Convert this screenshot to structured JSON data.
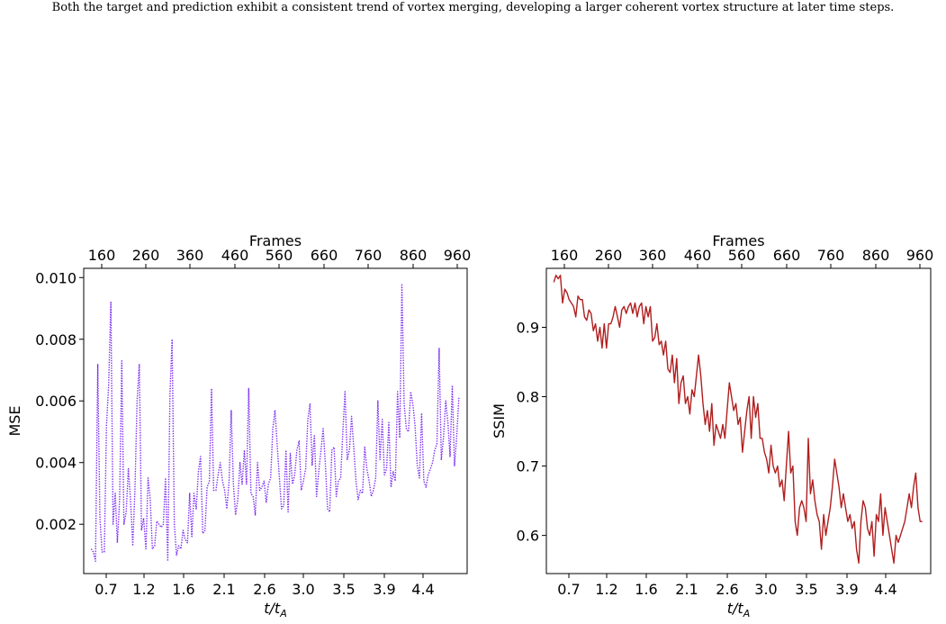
{
  "caption": "Both the target and prediction exhibit a consistent trend of vortex merging, developing a larger coherent vortex structure at later time steps.",
  "colors": {
    "mse": "#7b2cf0",
    "ssim": "#b01e1e"
  },
  "chart_data": [
    {
      "type": "line",
      "title": "",
      "xlabel": "t/t_A",
      "xlabel_main": "t/t",
      "xlabel_sub": "A",
      "ylabel": "MSE",
      "top_xlabel": "Frames",
      "top_ticks": [
        "160",
        "260",
        "360",
        "460",
        "560",
        "660",
        "760",
        "860",
        "960"
      ],
      "bottom_ticks": [
        "0.7",
        "1.2",
        "1.6",
        "2.1",
        "2.6",
        "3.0",
        "3.5",
        "3.9",
        "4.4"
      ],
      "y_ticks": [
        "0.002",
        "0.004",
        "0.006",
        "0.008",
        "0.010"
      ],
      "y_tick_values": [
        0.002,
        0.004,
        0.006,
        0.008,
        0.01
      ],
      "xlim": [
        143,
        1019
      ],
      "ylim": [
        0.0004,
        0.0103
      ],
      "line_style": "dotted",
      "series": [
        {
          "color": "#7b2cf0",
          "x": [
            160,
            165,
            170,
            175,
            180,
            185,
            190,
            195,
            200,
            205,
            210,
            215,
            220,
            225,
            230,
            235,
            240,
            245,
            250,
            255,
            260,
            265,
            270,
            275,
            280,
            285,
            290,
            295,
            300,
            305,
            310,
            315,
            320,
            325,
            330,
            335,
            340,
            345,
            350,
            355,
            360,
            365,
            370,
            375,
            380,
            385,
            390,
            395,
            400,
            405,
            410,
            415,
            420,
            425,
            430,
            435,
            440,
            445,
            450,
            455,
            460,
            465,
            470,
            475,
            480,
            485,
            490,
            495,
            500,
            505,
            510,
            515,
            520,
            525,
            530,
            535,
            540,
            545,
            550,
            555,
            560,
            565,
            570,
            575,
            580,
            585,
            590,
            595,
            600,
            605,
            610,
            615,
            620,
            625,
            630,
            635,
            640,
            645,
            650,
            655,
            660,
            665,
            670,
            675,
            680,
            685,
            690,
            695,
            700,
            705,
            710,
            715,
            720,
            725,
            730,
            735,
            740,
            745,
            750,
            755,
            760,
            765,
            770,
            775,
            780,
            785,
            790,
            795,
            800,
            805,
            810,
            815,
            820,
            825,
            830,
            835,
            840,
            845,
            850,
            855,
            860,
            865,
            870,
            875,
            880,
            885,
            890,
            895,
            900,
            905,
            910,
            915,
            920,
            925,
            930,
            935,
            940,
            945,
            950,
            955,
            960,
            965,
            970,
            975,
            980,
            985,
            990,
            995,
            1000
          ],
          "y": [
            0.0012,
            0.0011,
            0.0008,
            0.0072,
            0.0022,
            0.0011,
            0.0011,
            0.0052,
            0.0065,
            0.0092,
            0.002,
            0.003,
            0.0014,
            0.0028,
            0.0073,
            0.002,
            0.0024,
            0.0038,
            0.0028,
            0.0013,
            0.0031,
            0.006,
            0.0072,
            0.0018,
            0.0022,
            0.0012,
            0.0035,
            0.0028,
            0.0012,
            0.0013,
            0.0021,
            0.002,
            0.0019,
            0.002,
            0.0035,
            0.0008,
            0.0062,
            0.008,
            0.002,
            0.001,
            0.0013,
            0.0012,
            0.0018,
            0.0015,
            0.0014,
            0.003,
            0.0016,
            0.003,
            0.0025,
            0.0037,
            0.0042,
            0.0017,
            0.0018,
            0.0032,
            0.0034,
            0.0064,
            0.0031,
            0.0031,
            0.0036,
            0.004,
            0.0034,
            0.0031,
            0.0025,
            0.0034,
            0.0057,
            0.0033,
            0.0023,
            0.0028,
            0.004,
            0.0033,
            0.0044,
            0.0033,
            0.0064,
            0.003,
            0.0029,
            0.0023,
            0.004,
            0.0031,
            0.0032,
            0.0034,
            0.0027,
            0.0033,
            0.0035,
            0.0051,
            0.0057,
            0.0046,
            0.0035,
            0.0025,
            0.0026,
            0.0044,
            0.0024,
            0.0043,
            0.0033,
            0.0036,
            0.0044,
            0.0047,
            0.0031,
            0.0034,
            0.0038,
            0.0054,
            0.0059,
            0.0039,
            0.0049,
            0.0029,
            0.0037,
            0.0044,
            0.0051,
            0.004,
            0.0025,
            0.0024,
            0.0044,
            0.0045,
            0.0029,
            0.0034,
            0.0035,
            0.005,
            0.0063,
            0.0041,
            0.0044,
            0.0055,
            0.0045,
            0.0034,
            0.0028,
            0.0031,
            0.003,
            0.0045,
            0.0038,
            0.0034,
            0.0029,
            0.0031,
            0.0035,
            0.006,
            0.0041,
            0.0054,
            0.0036,
            0.0038,
            0.0053,
            0.0032,
            0.0037,
            0.0034,
            0.0063,
            0.0048,
            0.0098,
            0.0059,
            0.0051,
            0.005,
            0.0063,
            0.0059,
            0.0052,
            0.0039,
            0.0035,
            0.0056,
            0.0034,
            0.0032,
            0.0036,
            0.0038,
            0.004,
            0.0044,
            0.0046,
            0.0077,
            0.0041,
            0.0048,
            0.006,
            0.0053,
            0.0042,
            0.0065,
            0.0039,
            0.0048,
            0.0061
          ]
        }
      ]
    },
    {
      "type": "line",
      "title": "",
      "xlabel": "t/t_A",
      "xlabel_main": "t/t",
      "xlabel_sub": "A",
      "ylabel": "SSIM",
      "top_xlabel": "Frames",
      "top_ticks": [
        "160",
        "260",
        "360",
        "460",
        "560",
        "660",
        "760",
        "860",
        "960"
      ],
      "bottom_ticks": [
        "0.7",
        "1.2",
        "1.6",
        "2.1",
        "2.6",
        "3.0",
        "3.5",
        "3.9",
        "4.4"
      ],
      "y_ticks": [
        "0.6",
        "0.7",
        "0.8",
        "0.9"
      ],
      "y_tick_values": [
        0.6,
        0.7,
        0.8,
        0.9
      ],
      "xlim": [
        143,
        1019
      ],
      "ylim": [
        0.545,
        0.985
      ],
      "line_style": "solid",
      "series": [
        {
          "color": "#b01e1e",
          "x": [
            160,
            165,
            170,
            175,
            180,
            185,
            190,
            195,
            200,
            205,
            210,
            215,
            220,
            225,
            230,
            235,
            240,
            245,
            250,
            255,
            260,
            265,
            270,
            275,
            280,
            285,
            290,
            295,
            300,
            305,
            310,
            315,
            320,
            325,
            330,
            335,
            340,
            345,
            350,
            355,
            360,
            365,
            370,
            375,
            380,
            385,
            390,
            395,
            400,
            405,
            410,
            415,
            420,
            425,
            430,
            435,
            440,
            445,
            450,
            455,
            460,
            465,
            470,
            475,
            480,
            485,
            490,
            495,
            500,
            505,
            510,
            515,
            520,
            525,
            530,
            535,
            540,
            545,
            550,
            555,
            560,
            565,
            570,
            575,
            580,
            585,
            590,
            595,
            600,
            605,
            610,
            615,
            620,
            625,
            630,
            635,
            640,
            645,
            650,
            655,
            660,
            665,
            670,
            675,
            680,
            685,
            690,
            695,
            700,
            705,
            710,
            715,
            720,
            725,
            730,
            735,
            740,
            745,
            750,
            755,
            760,
            765,
            770,
            775,
            780,
            785,
            790,
            795,
            800,
            805,
            810,
            815,
            820,
            825,
            830,
            835,
            840,
            845,
            850,
            855,
            860,
            865,
            870,
            875,
            880,
            885,
            890,
            895,
            900,
            905,
            910,
            915,
            920,
            925,
            930,
            935,
            940,
            945,
            950,
            955,
            960,
            965,
            970,
            975,
            980,
            985,
            990,
            995,
            1000
          ],
          "y": [
            0.965,
            0.975,
            0.97,
            0.975,
            0.935,
            0.955,
            0.95,
            0.94,
            0.935,
            0.93,
            0.915,
            0.945,
            0.94,
            0.94,
            0.915,
            0.91,
            0.925,
            0.92,
            0.895,
            0.905,
            0.88,
            0.9,
            0.87,
            0.905,
            0.87,
            0.905,
            0.905,
            0.915,
            0.93,
            0.915,
            0.9,
            0.925,
            0.93,
            0.92,
            0.93,
            0.935,
            0.92,
            0.935,
            0.915,
            0.93,
            0.935,
            0.905,
            0.93,
            0.915,
            0.93,
            0.88,
            0.885,
            0.905,
            0.875,
            0.88,
            0.86,
            0.88,
            0.84,
            0.835,
            0.86,
            0.82,
            0.855,
            0.79,
            0.82,
            0.83,
            0.79,
            0.8,
            0.775,
            0.81,
            0.8,
            0.83,
            0.86,
            0.83,
            0.79,
            0.76,
            0.78,
            0.75,
            0.79,
            0.73,
            0.76,
            0.75,
            0.74,
            0.76,
            0.74,
            0.78,
            0.82,
            0.8,
            0.78,
            0.79,
            0.76,
            0.77,
            0.72,
            0.75,
            0.78,
            0.8,
            0.74,
            0.8,
            0.77,
            0.79,
            0.74,
            0.74,
            0.72,
            0.71,
            0.69,
            0.73,
            0.7,
            0.69,
            0.7,
            0.67,
            0.68,
            0.65,
            0.7,
            0.75,
            0.69,
            0.7,
            0.62,
            0.6,
            0.64,
            0.65,
            0.64,
            0.62,
            0.74,
            0.66,
            0.68,
            0.65,
            0.63,
            0.62,
            0.58,
            0.63,
            0.6,
            0.62,
            0.64,
            0.67,
            0.71,
            0.69,
            0.67,
            0.64,
            0.66,
            0.64,
            0.62,
            0.63,
            0.61,
            0.62,
            0.58,
            0.56,
            0.62,
            0.65,
            0.64,
            0.61,
            0.6,
            0.62,
            0.57,
            0.63,
            0.62,
            0.66,
            0.6,
            0.64,
            0.62,
            0.6,
            0.58,
            0.56,
            0.6,
            0.59,
            0.6,
            0.61,
            0.62,
            0.64,
            0.66,
            0.64,
            0.67,
            0.69,
            0.64,
            0.62,
            0.62
          ]
        }
      ]
    }
  ]
}
